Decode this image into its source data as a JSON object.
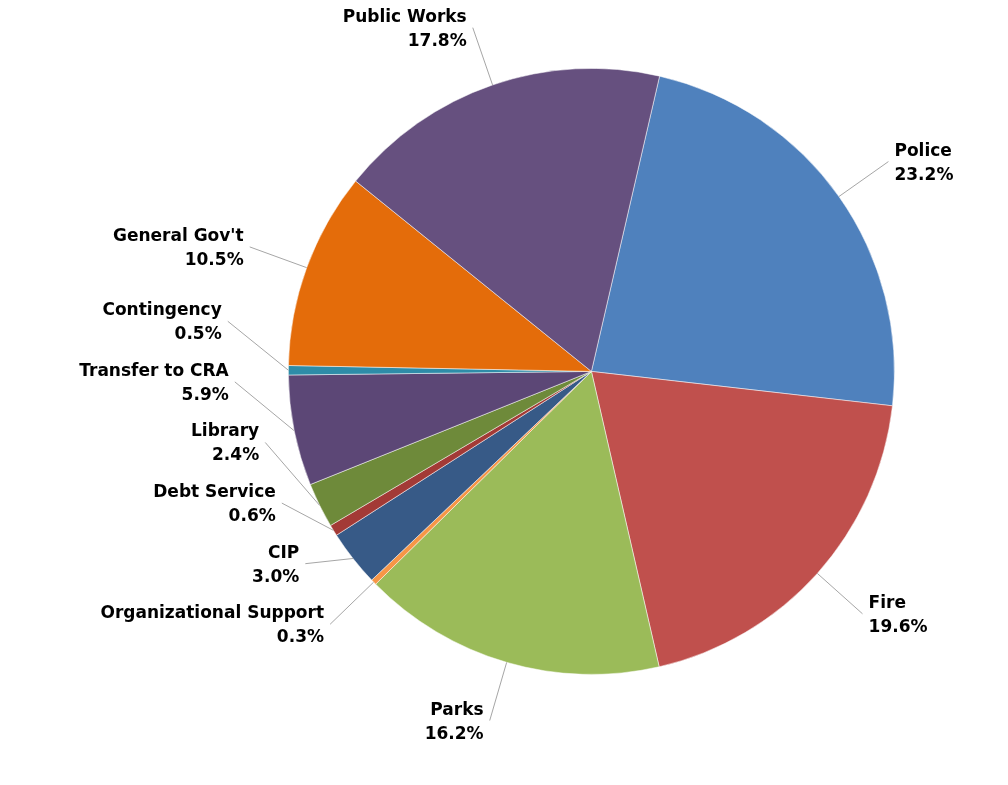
{
  "chart_data": {
    "type": "pie",
    "categories": [
      "Police",
      "Fire",
      "Parks",
      "Organizational Support",
      "CIP",
      "Debt Service",
      "Library",
      "Transfer to CRA",
      "Contingency",
      "General Gov't",
      "Public Works"
    ],
    "values": [
      23.2,
      19.6,
      16.2,
      0.3,
      3.0,
      0.6,
      2.4,
      5.9,
      0.5,
      10.5,
      17.8
    ],
    "colors": [
      "#4f81bd",
      "#c0504d",
      "#9bbb59",
      "#f79646",
      "#375a87",
      "#a33a36",
      "#6e8a3a",
      "#5c4776",
      "#2e8ca8",
      "#e46c0a",
      "#66507f"
    ],
    "value_labels": [
      "23.2%",
      "19.6%",
      "16.2%",
      "0.3%",
      "3.0%",
      "0.6%",
      "2.4%",
      "5.9%",
      "0.5%",
      "10.5%",
      "17.8%"
    ]
  }
}
